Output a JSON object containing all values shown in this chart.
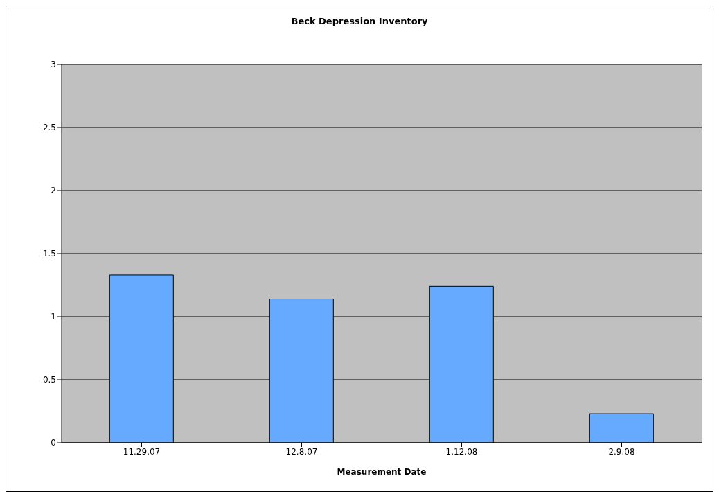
{
  "chart_data": {
    "type": "bar",
    "title": "Beck Depression Inventory",
    "xlabel": "Measurement Date",
    "categories": [
      "11.29.07",
      "12.8.07",
      "1.12.08",
      "2.9.08"
    ],
    "values": [
      1.33,
      1.14,
      1.24,
      0.23
    ],
    "color": "#66aaff",
    "ylim": [
      0,
      3
    ],
    "yticks": [
      0,
      0.5,
      1,
      1.5,
      2,
      2.5,
      3
    ],
    "grid": "y"
  }
}
